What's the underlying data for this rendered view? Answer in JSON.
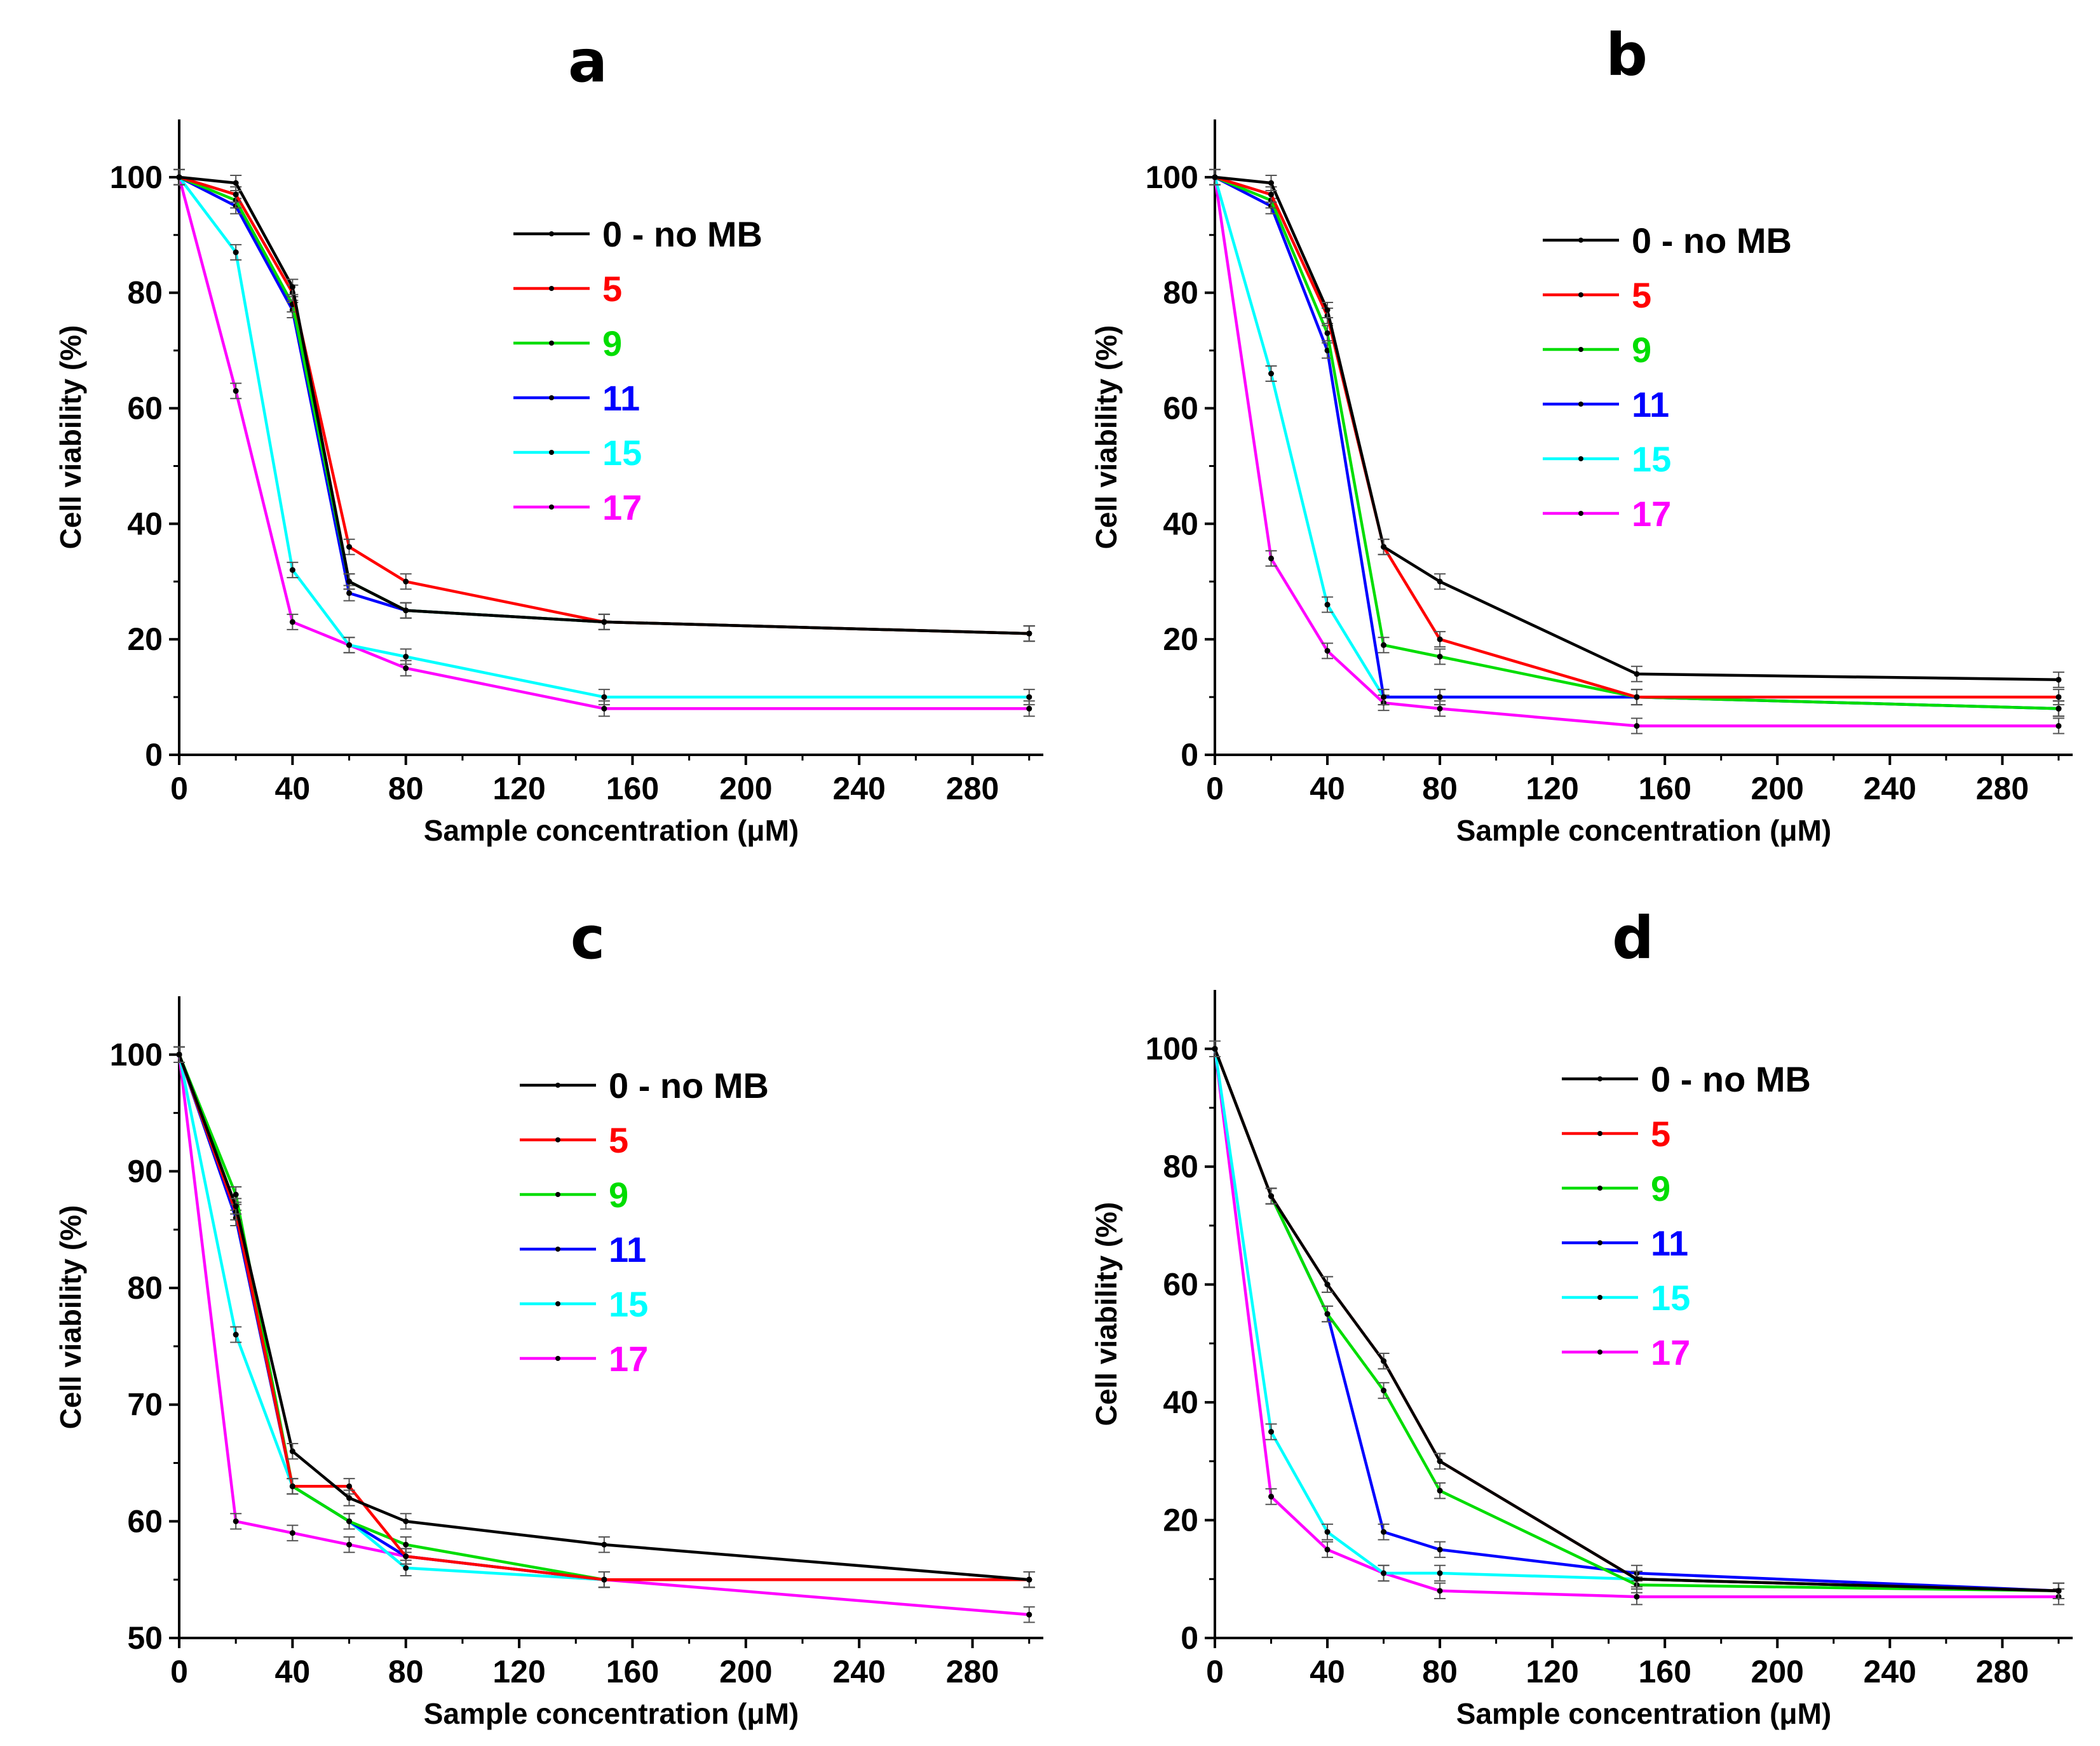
{
  "chart_data": [
    {
      "type": "line",
      "title": "a",
      "xlabel": "Sample concentration (μM)",
      "ylabel": "Cell viability (%)",
      "xlim": [
        0,
        305
      ],
      "ylim": [
        0,
        110
      ],
      "xticks": [
        0,
        40,
        80,
        120,
        160,
        200,
        240,
        280
      ],
      "yticks": [
        0,
        20,
        40,
        60,
        80,
        100
      ],
      "x": [
        0,
        20,
        40,
        60,
        80,
        150,
        300
      ],
      "legend_position": "top-center",
      "series": [
        {
          "name": "0 - no MB",
          "color": "#000000",
          "values": [
            100,
            99,
            81,
            30,
            25,
            23,
            21
          ]
        },
        {
          "name": "5",
          "color": "#ff0000",
          "values": [
            100,
            97,
            80,
            36,
            30,
            23,
            21
          ]
        },
        {
          "name": "9",
          "color": "#00dd00",
          "values": [
            100,
            96,
            78,
            30,
            25,
            23,
            21
          ]
        },
        {
          "name": "11",
          "color": "#0000ff",
          "values": [
            100,
            95,
            77,
            28,
            25,
            23,
            21
          ]
        },
        {
          "name": "15",
          "color": "#00ffff",
          "values": [
            100,
            87,
            32,
            19,
            17,
            10,
            10
          ]
        },
        {
          "name": "17",
          "color": "#ff00ff",
          "values": [
            100,
            63,
            23,
            19,
            15,
            8,
            8
          ]
        }
      ]
    },
    {
      "type": "line",
      "title": "b",
      "xlabel": "Sample concentration (μM)",
      "ylabel": "Cell viability (%)",
      "xlim": [
        0,
        305
      ],
      "ylim": [
        0,
        110
      ],
      "xticks": [
        0,
        40,
        80,
        120,
        160,
        200,
        240,
        280
      ],
      "yticks": [
        0,
        20,
        40,
        60,
        80,
        100
      ],
      "x": [
        0,
        20,
        40,
        60,
        80,
        150,
        300
      ],
      "legend_position": "top-right",
      "series": [
        {
          "name": "0 - no MB",
          "color": "#000000",
          "values": [
            100,
            99,
            77,
            36,
            30,
            14,
            13
          ]
        },
        {
          "name": "5",
          "color": "#ff0000",
          "values": [
            100,
            97,
            76,
            36,
            20,
            10,
            10
          ]
        },
        {
          "name": "9",
          "color": "#00dd00",
          "values": [
            100,
            96,
            73,
            19,
            17,
            10,
            8
          ]
        },
        {
          "name": "11",
          "color": "#0000ff",
          "values": [
            100,
            95,
            70,
            10,
            10,
            10,
            8
          ]
        },
        {
          "name": "15",
          "color": "#00ffff",
          "values": [
            100,
            66,
            26,
            10,
            10,
            10,
            8
          ]
        },
        {
          "name": "17",
          "color": "#ff00ff",
          "values": [
            100,
            34,
            18,
            9,
            8,
            5,
            5
          ]
        }
      ]
    },
    {
      "type": "line",
      "title": "c",
      "xlabel": "Sample concentration (μM)",
      "ylabel": "Cell viability (%)",
      "xlim": [
        0,
        305
      ],
      "ylim": [
        50,
        105
      ],
      "xticks": [
        0,
        40,
        80,
        120,
        160,
        200,
        240,
        280
      ],
      "yticks": [
        50,
        60,
        70,
        80,
        90,
        100
      ],
      "x": [
        0,
        20,
        40,
        60,
        80,
        150,
        300
      ],
      "legend_position": "top-center",
      "series": [
        {
          "name": "0 - no MB",
          "color": "#000000",
          "values": [
            100,
            87,
            66,
            62,
            60,
            58,
            55
          ]
        },
        {
          "name": "5",
          "color": "#ff0000",
          "values": [
            100,
            86.5,
            63,
            63,
            57,
            55,
            55
          ]
        },
        {
          "name": "9",
          "color": "#00dd00",
          "values": [
            100,
            88,
            63,
            60,
            58,
            55,
            55
          ]
        },
        {
          "name": "11",
          "color": "#0000ff",
          "values": [
            100,
            86,
            63,
            60,
            57,
            55,
            55
          ]
        },
        {
          "name": "15",
          "color": "#00ffff",
          "values": [
            100,
            76,
            63,
            60,
            56,
            55,
            55
          ]
        },
        {
          "name": "17",
          "color": "#ff00ff",
          "values": [
            100,
            60,
            59,
            58,
            57,
            55,
            52
          ]
        }
      ]
    },
    {
      "type": "line",
      "title": "d",
      "xlabel": "Sample concentration (μM)",
      "ylabel": "Cell viability (%)",
      "xlim": [
        0,
        305
      ],
      "ylim": [
        0,
        110
      ],
      "xticks": [
        0,
        40,
        80,
        120,
        160,
        200,
        240,
        280
      ],
      "yticks": [
        0,
        20,
        40,
        60,
        80,
        100
      ],
      "x": [
        0,
        20,
        40,
        60,
        80,
        150,
        300
      ],
      "legend_position": "top-right",
      "series": [
        {
          "name": "0 - no MB",
          "color": "#000000",
          "values": [
            100,
            75,
            60,
            47,
            30,
            10,
            8
          ]
        },
        {
          "name": "5",
          "color": "#ff0000",
          "values": [
            100,
            75,
            60,
            47,
            30,
            10,
            8
          ]
        },
        {
          "name": "9",
          "color": "#00dd00",
          "values": [
            100,
            75,
            55,
            42,
            25,
            9,
            8
          ]
        },
        {
          "name": "11",
          "color": "#0000ff",
          "values": [
            100,
            75,
            55,
            18,
            15,
            11,
            8
          ]
        },
        {
          "name": "15",
          "color": "#00ffff",
          "values": [
            100,
            35,
            18,
            11,
            11,
            10,
            8
          ]
        },
        {
          "name": "17",
          "color": "#ff00ff",
          "values": [
            100,
            24,
            15,
            11,
            8,
            7,
            7
          ]
        }
      ]
    }
  ]
}
